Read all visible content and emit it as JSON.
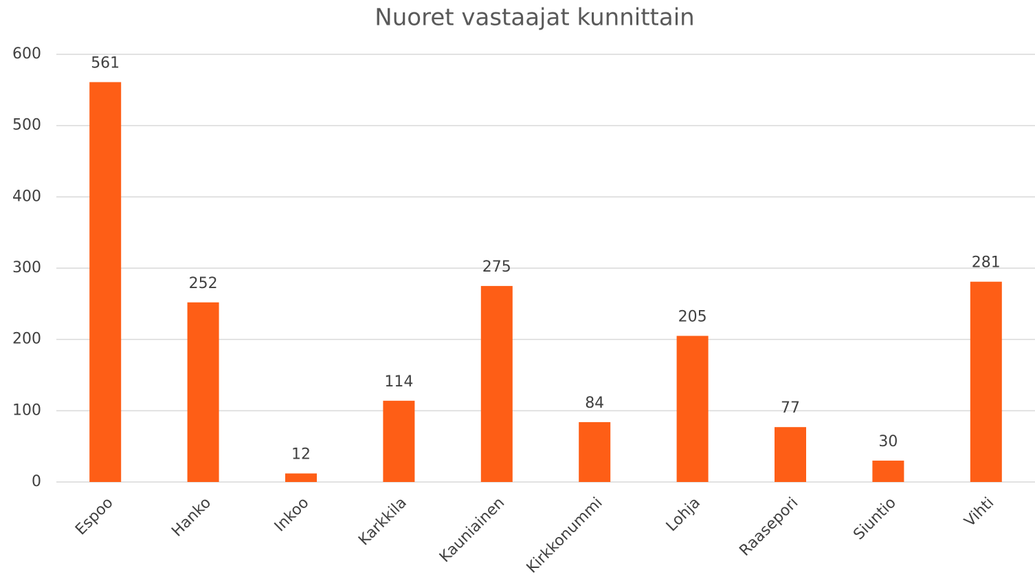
{
  "chart_data": {
    "type": "bar",
    "title": "Nuoret vastaajat kunnittain",
    "categories": [
      "Espoo",
      "Hanko",
      "Inkoo",
      "Karkkila",
      "Kauniainen",
      "Kirkkonummi",
      "Lohja",
      "Raasepori",
      "Siuntio",
      "Vihti"
    ],
    "values": [
      561,
      252,
      12,
      114,
      275,
      84,
      205,
      77,
      30,
      281
    ],
    "color": "#fe5e16",
    "ylim": [
      0,
      600
    ],
    "yticks": [
      0,
      100,
      200,
      300,
      400,
      500,
      600
    ],
    "grid": true
  }
}
